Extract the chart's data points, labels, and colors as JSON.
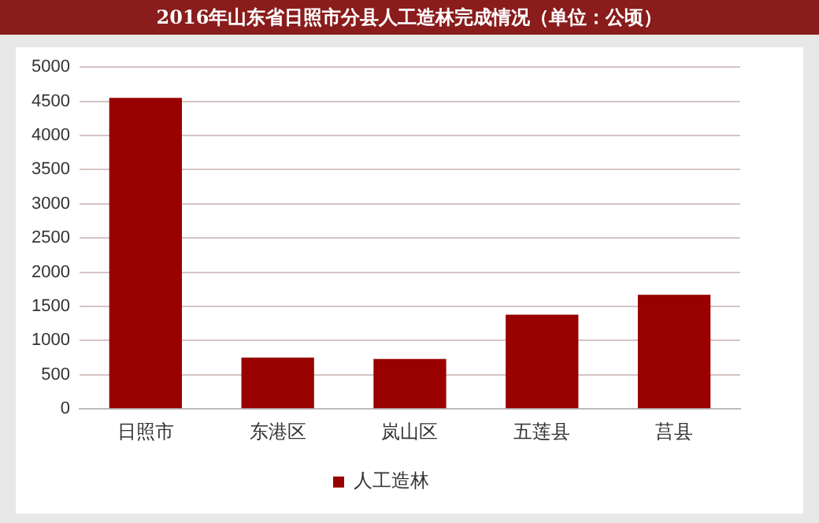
{
  "chart_data": {
    "type": "bar",
    "title": "2016年山东省日照市分县人工造林完成情况（单位：公顷）",
    "categories": [
      "日照市",
      "东港区",
      "岚山区",
      "五莲县",
      "莒县"
    ],
    "series": [
      {
        "name": "人工造林",
        "color": "#990000",
        "values": [
          4550,
          750,
          730,
          1380,
          1670
        ]
      }
    ],
    "ylim": [
      0,
      5000
    ],
    "yticks": [
      0,
      500,
      1000,
      1500,
      2000,
      2500,
      3000,
      3500,
      4000,
      4500,
      5000
    ],
    "grid": "y",
    "legend": "bottom"
  }
}
